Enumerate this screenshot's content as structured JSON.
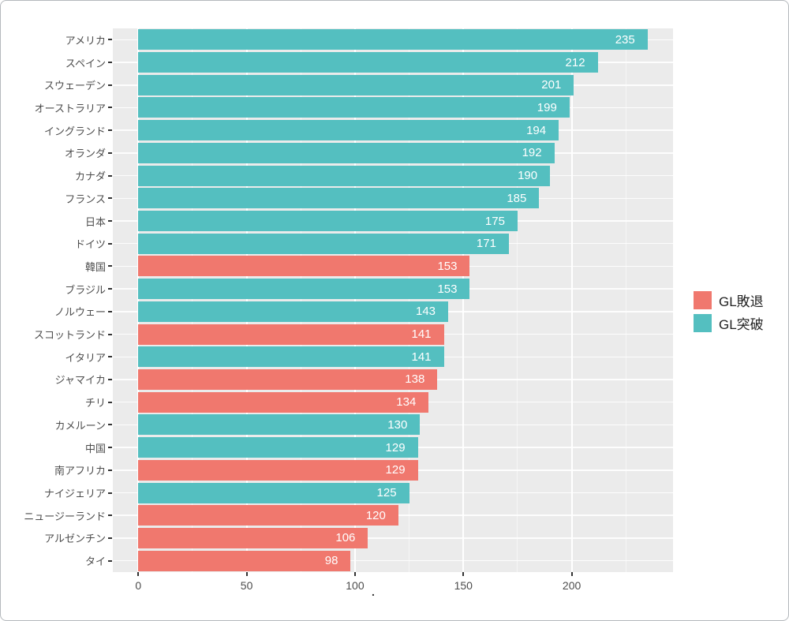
{
  "chart_data": {
    "type": "bar",
    "orientation": "horizontal",
    "title": "",
    "xlabel": ".",
    "ylabel": "",
    "categories": [
      "アメリカ",
      "スペイン",
      "スウェーデン",
      "オーストラリア",
      "イングランド",
      "オランダ",
      "カナダ",
      "フランス",
      "日本",
      "ドイツ",
      "韓国",
      "ブラジル",
      "ノルウェー",
      "スコットランド",
      "イタリア",
      "ジャマイカ",
      "チリ",
      "カメルーン",
      "中国",
      "南アフリカ",
      "ナイジェリア",
      "ニュージーランド",
      "アルゼンチン",
      "タイ"
    ],
    "values": [
      235,
      212,
      201,
      199,
      194,
      192,
      190,
      185,
      175,
      171,
      153,
      153,
      143,
      141,
      141,
      138,
      134,
      130,
      129,
      129,
      125,
      120,
      106,
      98
    ],
    "groups": [
      "GL突破",
      "GL突破",
      "GL突破",
      "GL突破",
      "GL突破",
      "GL突破",
      "GL突破",
      "GL突破",
      "GL突破",
      "GL突破",
      "GL敗退",
      "GL突破",
      "GL突破",
      "GL敗退",
      "GL突破",
      "GL敗退",
      "GL敗退",
      "GL突破",
      "GL突破",
      "GL敗退",
      "GL突破",
      "GL敗退",
      "GL敗退",
      "GL敗退"
    ],
    "group_colors": {
      "GL敗退": "#f0786e",
      "GL突破": "#54bfc0"
    },
    "legend": [
      {
        "label": "GL敗退",
        "color": "#f0786e"
      },
      {
        "label": "GL突破",
        "color": "#54bfc0"
      }
    ],
    "legend_position": "right",
    "x_ticks": [
      0,
      50,
      100,
      150,
      200
    ],
    "x_minor_ticks": [
      25,
      75,
      125,
      175,
      225
    ],
    "xlim": [
      -11.75,
      246.75
    ],
    "grid": true,
    "panel_background": "#ebebeb",
    "gridline_color": "#ffffff",
    "value_label_color": "#ffffff",
    "axis_text_color": "#4d4d4d"
  }
}
